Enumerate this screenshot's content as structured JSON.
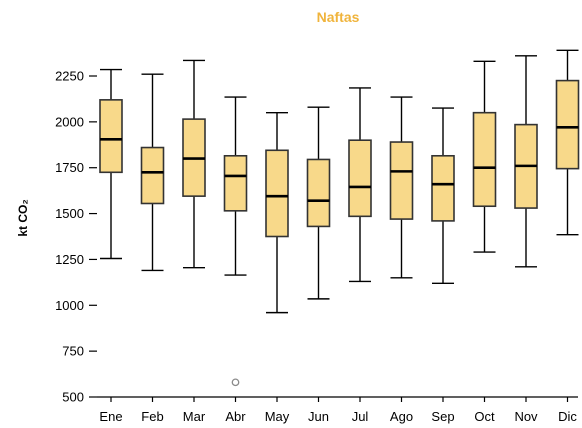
{
  "chart_data": {
    "type": "box",
    "title": "Naftas",
    "xlabel": "",
    "ylabel": "kt CO₂",
    "ylim": [
      480,
      2400
    ],
    "yticks": [
      500,
      750,
      1000,
      1250,
      1500,
      1750,
      2000,
      2250
    ],
    "categories": [
      "Ene",
      "Feb",
      "Mar",
      "Abr",
      "May",
      "Jun",
      "Jul",
      "Ago",
      "Sep",
      "Oct",
      "Nov",
      "Dic"
    ],
    "boxes": [
      {
        "label": "Ene",
        "min": 1255,
        "q1": 1725,
        "median": 1905,
        "q3": 2120,
        "max": 2285,
        "outliers": []
      },
      {
        "label": "Feb",
        "min": 1190,
        "q1": 1555,
        "median": 1725,
        "q3": 1860,
        "max": 2260,
        "outliers": []
      },
      {
        "label": "Mar",
        "min": 1205,
        "q1": 1595,
        "median": 1800,
        "q3": 2015,
        "max": 2335,
        "outliers": []
      },
      {
        "label": "Abr",
        "min": 1165,
        "q1": 1515,
        "median": 1705,
        "q3": 1815,
        "max": 2135,
        "outliers": [
          580
        ]
      },
      {
        "label": "May",
        "min": 960,
        "q1": 1375,
        "median": 1595,
        "q3": 1845,
        "max": 2050,
        "outliers": []
      },
      {
        "label": "Jun",
        "min": 1035,
        "q1": 1430,
        "median": 1570,
        "q3": 1795,
        "max": 2080,
        "outliers": []
      },
      {
        "label": "Jul",
        "min": 1130,
        "q1": 1485,
        "median": 1645,
        "q3": 1900,
        "max": 2185,
        "outliers": []
      },
      {
        "label": "Ago",
        "min": 1150,
        "q1": 1470,
        "median": 1730,
        "q3": 1890,
        "max": 2135,
        "outliers": []
      },
      {
        "label": "Sep",
        "min": 1120,
        "q1": 1460,
        "median": 1660,
        "q3": 1815,
        "max": 2075,
        "outliers": []
      },
      {
        "label": "Oct",
        "min": 1290,
        "q1": 1540,
        "median": 1750,
        "q3": 2050,
        "max": 2330,
        "outliers": []
      },
      {
        "label": "Nov",
        "min": 1210,
        "q1": 1530,
        "median": 1760,
        "q3": 1985,
        "max": 2360,
        "outliers": []
      },
      {
        "label": "Dic",
        "min": 1385,
        "q1": 1745,
        "median": 1970,
        "q3": 2225,
        "max": 2390,
        "outliers": []
      }
    ],
    "colors": {
      "box_fill": "#f8d98a",
      "box_edge": "#333333",
      "title": "#f0b43c",
      "outlier": "#8a8a8a"
    },
    "grid": false,
    "legend": "none"
  }
}
